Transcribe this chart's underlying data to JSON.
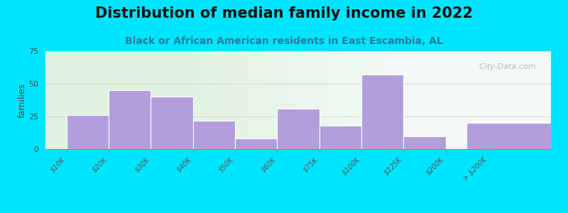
{
  "title": "Distribution of median family income in 2022",
  "subtitle": "Black or African American residents in East Escambia, AL",
  "ylabel": "families",
  "categories": [
    "$10K",
    "$20K",
    "$30K",
    "$40K",
    "$50K",
    "$60K",
    "$75K",
    "$100K",
    "$125K",
    "$200K",
    "> $200K"
  ],
  "values": [
    26,
    45,
    40,
    22,
    8,
    31,
    18,
    57,
    10,
    0,
    20
  ],
  "bar_color": "#b39ddb",
  "background_outer": "#00e5ff",
  "background_plot_left": "#ddf0d8",
  "background_plot_right": "#e8f0f8",
  "ylim": [
    0,
    75
  ],
  "yticks": [
    0,
    25,
    50,
    75
  ],
  "title_fontsize": 15,
  "subtitle_fontsize": 10,
  "watermark": "  City-Data.com",
  "bar_positions": [
    0,
    1,
    2,
    3,
    4,
    5,
    6,
    7,
    8,
    9,
    10
  ],
  "bar_width": 1.0,
  "x_tick_positions": [
    0,
    1,
    2,
    3,
    4,
    5,
    6,
    7,
    8,
    9,
    10
  ],
  "last_bar_width": 2.0
}
